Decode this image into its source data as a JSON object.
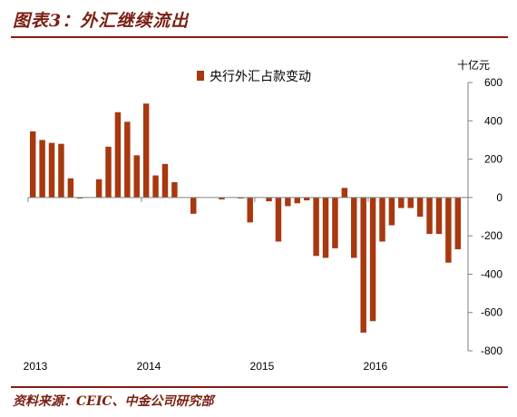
{
  "figure": {
    "title": "图表3：外汇继续流出",
    "source": "资料来源：CEIC、中金公司研究部"
  },
  "chart_data": {
    "type": "bar",
    "series": [
      {
        "name": "央行外汇占款变动",
        "color": "#a8380f",
        "values": [
          345,
          300,
          285,
          280,
          100,
          -5,
          0,
          95,
          265,
          445,
          395,
          220,
          490,
          115,
          175,
          80,
          0,
          -85,
          0,
          0,
          -10,
          0,
          -5,
          -130,
          0,
          -20,
          -230,
          -45,
          -30,
          -15,
          -305,
          -315,
          -265,
          50,
          -315,
          -705,
          -645,
          -230,
          -145,
          -55,
          -55,
          -100,
          -190,
          -190,
          -340,
          -270
        ]
      }
    ],
    "x_labels": [
      "2013",
      "2014",
      "2015",
      "2016"
    ],
    "x_label_indices": [
      0,
      12,
      24,
      36
    ],
    "unit": "十亿元",
    "ylim": [
      -800,
      600
    ],
    "y_ticks": [
      600,
      400,
      200,
      0,
      -200,
      -400,
      -600,
      -800
    ],
    "y_axis_position": "right",
    "legend_position": "top-center",
    "grid": false
  }
}
